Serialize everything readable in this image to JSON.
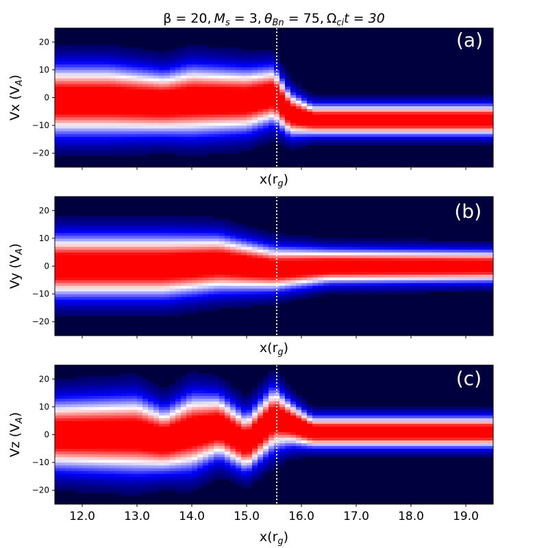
{
  "title": "β = 20, M_s = 3, θ_Bn = 75, Ω_ci t = 30",
  "title_parts": {
    "beta": "β = 20,",
    "ms_sym": "M",
    "ms_sub": "s",
    "ms_val": " = 3,",
    "theta_sym": "θ",
    "theta_sub": "Bn",
    "theta_val": " = 75,",
    "omega_sym": "Ω",
    "omega_sub": "ci",
    "omega_val": "t = 30"
  },
  "colors": {
    "background": "#00003f",
    "peak": "#ff0000",
    "mid": "#ffffff",
    "low": "#0000ff",
    "marker": "#ffffff"
  },
  "colormap": "seismic",
  "chart_data": [
    {
      "type": "heatmap",
      "panel": "(a)",
      "ylabel": "Vx (V_A)",
      "ylabel_main": "Vx (V",
      "ylabel_sub": "A",
      "ylabel_close": ")",
      "xlabel": "x(r_g)",
      "xlabel_main": "x(r",
      "xlabel_sub": "g",
      "xlabel_close": ")",
      "xlim": [
        11.5,
        19.5
      ],
      "ylim": [
        -25,
        25
      ],
      "yticks": [
        -20,
        -10,
        0,
        10,
        20
      ],
      "xtick_labels_visible": false,
      "marker_x": 15.55,
      "profile": [
        {
          "x": 11.5,
          "center": -1,
          "width": 11
        },
        {
          "x": 12.5,
          "center": -1,
          "width": 11
        },
        {
          "x": 13.5,
          "center": -2,
          "width": 10
        },
        {
          "x": 14.0,
          "center": -1,
          "width": 11
        },
        {
          "x": 15.0,
          "center": -1,
          "width": 10
        },
        {
          "x": 15.5,
          "center": 1,
          "width": 9
        },
        {
          "x": 15.8,
          "center": -6,
          "width": 7
        },
        {
          "x": 16.2,
          "center": -8,
          "width": 5
        },
        {
          "x": 19.5,
          "center": -8,
          "width": 5
        }
      ]
    },
    {
      "type": "heatmap",
      "panel": "(b)",
      "ylabel": "Vy (V_A)",
      "ylabel_main": "Vy (V",
      "ylabel_sub": "A",
      "ylabel_close": ")",
      "xlabel": "x(r_g)",
      "xlabel_main": "x(r",
      "xlabel_sub": "g",
      "xlabel_close": ")",
      "xlim": [
        11.5,
        19.5
      ],
      "ylim": [
        -25,
        25
      ],
      "yticks": [
        -20,
        -10,
        0,
        10,
        20
      ],
      "xtick_labels_visible": false,
      "marker_x": 15.55,
      "profile": [
        {
          "x": 11.5,
          "center": 0,
          "width": 10
        },
        {
          "x": 13.5,
          "center": 0,
          "width": 10
        },
        {
          "x": 14.5,
          "center": 1,
          "width": 9
        },
        {
          "x": 15.5,
          "center": -1,
          "width": 7
        },
        {
          "x": 16.5,
          "center": 0,
          "width": 5.5
        },
        {
          "x": 19.5,
          "center": 0,
          "width": 5
        }
      ]
    },
    {
      "type": "heatmap",
      "panel": "(c)",
      "ylabel": "Vz (V_A)",
      "ylabel_main": "Vz (V",
      "ylabel_sub": "A",
      "ylabel_close": ")",
      "xlabel": "x(r_g)",
      "xlabel_main": "x(r",
      "xlabel_sub": "g",
      "xlabel_close": ")",
      "xlim": [
        11.5,
        19.5
      ],
      "ylim": [
        -25,
        25
      ],
      "yticks": [
        -20,
        -10,
        0,
        10,
        20
      ],
      "xticks": [
        12.0,
        13.0,
        14.0,
        15.0,
        16.0,
        17.0,
        18.0,
        19.0
      ],
      "xtick_labels": [
        "12.0",
        "13.0",
        "14.0",
        "15.0",
        "16.0",
        "17.0",
        "18.0",
        "19.0"
      ],
      "xtick_labels_visible": true,
      "marker_x": 15.55,
      "profile": [
        {
          "x": 11.5,
          "center": 0,
          "width": 11
        },
        {
          "x": 13.0,
          "center": 0,
          "width": 12
        },
        {
          "x": 13.5,
          "center": -2,
          "width": 10
        },
        {
          "x": 14.0,
          "center": 1,
          "width": 12
        },
        {
          "x": 14.5,
          "center": 3,
          "width": 10
        },
        {
          "x": 15.0,
          "center": -3,
          "width": 9
        },
        {
          "x": 15.5,
          "center": 6,
          "width": 10
        },
        {
          "x": 15.8,
          "center": 4,
          "width": 7
        },
        {
          "x": 16.2,
          "center": 1,
          "width": 5
        },
        {
          "x": 19.5,
          "center": 1,
          "width": 5
        }
      ]
    }
  ]
}
